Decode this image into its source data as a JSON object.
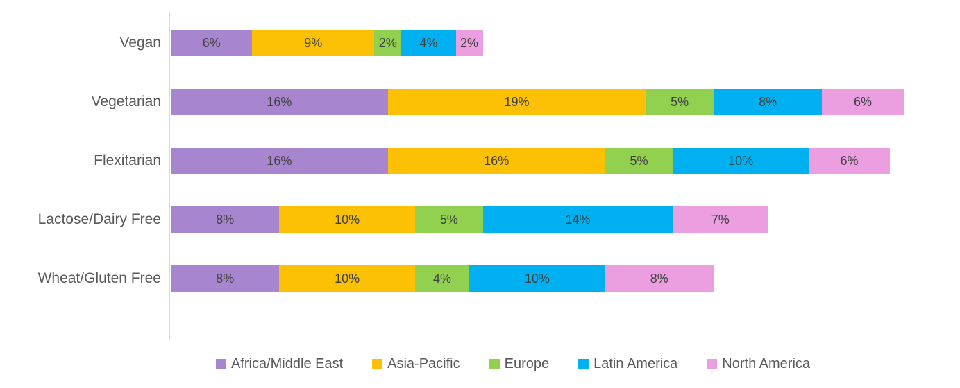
{
  "chart_data": {
    "type": "bar",
    "orientation": "horizontal",
    "stacked": true,
    "title": "",
    "xlabel": "",
    "ylabel": "",
    "grid": false,
    "legend_position": "bottom",
    "value_suffix": "%",
    "categories": [
      "Vegan",
      "Vegetarian",
      "Flexitarian",
      "Lactose/Dairy Free",
      "Wheat/Gluten Free"
    ],
    "series": [
      {
        "name": "Africa/Middle East",
        "color": "#A886CF",
        "values": [
          6,
          16,
          16,
          8,
          8
        ]
      },
      {
        "name": "Asia-Pacific",
        "color": "#FCC004",
        "values": [
          9,
          19,
          16,
          10,
          10
        ]
      },
      {
        "name": "Europe",
        "color": "#92D050",
        "values": [
          2,
          5,
          5,
          5,
          4
        ]
      },
      {
        "name": "Latin America",
        "color": "#00B0F0",
        "values": [
          4,
          8,
          10,
          14,
          10
        ]
      },
      {
        "name": "North America",
        "color": "#EB9EE0",
        "values": [
          2,
          6,
          6,
          7,
          8
        ]
      }
    ],
    "data_labels": true,
    "colors": {
      "category_label": "#595959",
      "data_label": "#404040",
      "axis_line": "#D9D9D9",
      "background": "#FFFFFF"
    }
  }
}
